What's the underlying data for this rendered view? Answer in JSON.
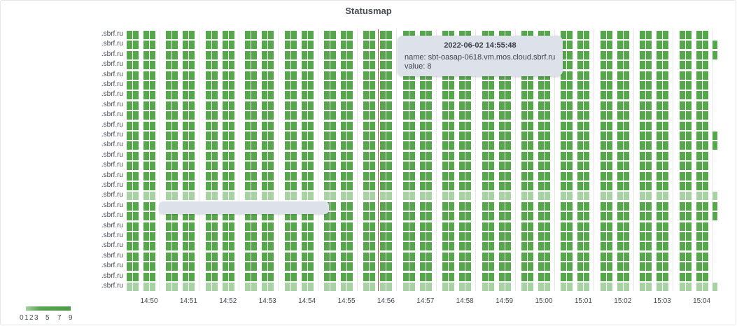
{
  "panel": {
    "title": "Statusmap"
  },
  "colors": {
    "ok": "#56a64b",
    "light": "#a8d2a4",
    "cursor": "#d44a3a",
    "grid": "#e8e8e8"
  },
  "y_labels": [
    ".sbrf.ru",
    ".sbrf.ru",
    ".sbrf.ru",
    ".sbrf.ru",
    ".sbrf.ru",
    ".sbrf.ru",
    ".sbrf.ru",
    ".sbrf.ru",
    ".sbrf.ru",
    ".sbrf.ru",
    ".sbrf.ru",
    ".sbrf.ru",
    ".sbrf.ru",
    ".sbrf.ru",
    ".sbrf.ru",
    ".sbrf.ru",
    ".sbrf.ru",
    ".sbrf.ru",
    ".sbrf.ru",
    ".sbrf.ru",
    ".sbrf.ru",
    ".sbrf.ru",
    ".sbrf.ru",
    ".sbrf.ru",
    ".sbrf.ru",
    ".sbrf.ru"
  ],
  "x_labels": [
    "14:50",
    "14:51",
    "14:52",
    "14:53",
    "14:54",
    "14:55",
    "14:56",
    "14:57",
    "14:58",
    "14:59",
    "15:00",
    "15:01",
    "15:02",
    "15:03",
    "15:04"
  ],
  "light_rows": [
    16,
    25
  ],
  "tooltip": {
    "time": "2022-06-02 14:55:48",
    "name": "name: sbt-oasap-0618.vm.mos.cloud.sbrf.ru",
    "value": "value: 8"
  },
  "legend": {
    "labels": [
      "0",
      "1",
      "2",
      "3",
      "5",
      "7",
      "9"
    ]
  }
}
